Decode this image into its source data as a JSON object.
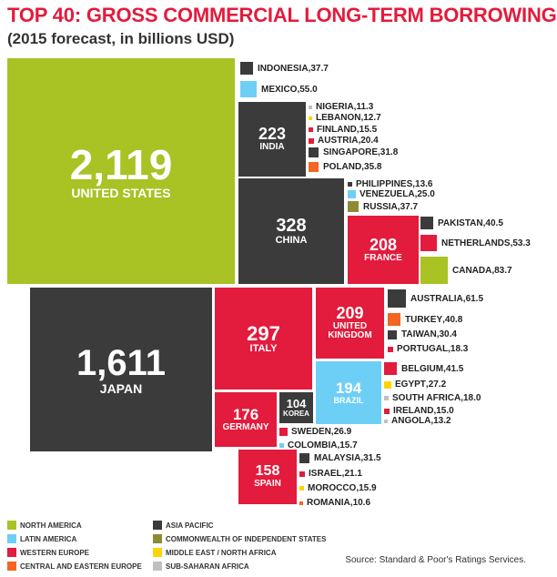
{
  "title": "TOP 40: GROSS COMMERCIAL LONG-TERM BORROWING",
  "subtitle": "(2015 forecast, in billions USD)",
  "source": "Source: Standard & Poor's Ratings Services.",
  "colors": {
    "north_america": "#a9c224",
    "latin_america": "#6ecff6",
    "western_europe": "#e31b3c",
    "central_eastern_europe": "#f26522",
    "asia_pacific": "#3b3b3b",
    "cis": "#8d8b35",
    "mena": "#ffd400",
    "ssa": "#c0c0c0"
  },
  "legend": [
    {
      "region": "north_america",
      "label": "NORTH AMERICA"
    },
    {
      "region": "latin_america",
      "label": "LATIN AMERICA"
    },
    {
      "region": "western_europe",
      "label": "WESTERN EUROPE"
    },
    {
      "region": "central_eastern_europe",
      "label": "CENTRAL AND EASTERN EUROPE"
    },
    {
      "region": "asia_pacific",
      "label": "ASIA PACIFIC"
    },
    {
      "region": "cis",
      "label": "COMMONWEALTH OF INDEPENDENT STATES"
    },
    {
      "region": "mena",
      "label": "MIDDLE EAST / NORTH AFRICA"
    },
    {
      "region": "ssa",
      "label": "SUB-SAHARAN AFRICA"
    }
  ],
  "chart_data": {
    "type": "treemap",
    "title": "TOP 40: GROSS COMMERCIAL LONG-TERM BORROWING",
    "subtitle": "(2015 forecast, in billions USD)",
    "unit": "billions USD",
    "items": [
      {
        "country": "UNITED STATES",
        "value": "2,119",
        "region": "north_america"
      },
      {
        "country": "JAPAN",
        "value": "1,611",
        "region": "asia_pacific"
      },
      {
        "country": "CHINA",
        "value": "328",
        "region": "asia_pacific"
      },
      {
        "country": "ITALY",
        "value": "297",
        "region": "western_europe"
      },
      {
        "country": "INDIA",
        "value": "223",
        "region": "asia_pacific"
      },
      {
        "country": "UNITED KINGDOM",
        "value": "209",
        "region": "western_europe"
      },
      {
        "country": "FRANCE",
        "value": "208",
        "region": "western_europe"
      },
      {
        "country": "BRAZIL",
        "value": "194",
        "region": "latin_america"
      },
      {
        "country": "GERMANY",
        "value": "176",
        "region": "western_europe"
      },
      {
        "country": "SPAIN",
        "value": "158",
        "region": "western_europe"
      },
      {
        "country": "KOREA",
        "value": "104",
        "region": "asia_pacific"
      },
      {
        "country": "CANADA",
        "value": "83.7",
        "region": "north_america"
      },
      {
        "country": "AUSTRALIA",
        "value": "61.5",
        "region": "asia_pacific"
      },
      {
        "country": "MEXICO",
        "value": "55.0",
        "region": "latin_america"
      },
      {
        "country": "NETHERLANDS",
        "value": "53.3",
        "region": "western_europe"
      },
      {
        "country": "BELGIUM",
        "value": "41.5",
        "region": "western_europe"
      },
      {
        "country": "TURKEY",
        "value": "40.8",
        "region": "central_eastern_europe"
      },
      {
        "country": "PAKISTAN",
        "value": "40.5",
        "region": "asia_pacific"
      },
      {
        "country": "INDONESIA",
        "value": "37.7",
        "region": "asia_pacific"
      },
      {
        "country": "RUSSIA",
        "value": "37.7",
        "region": "cis"
      },
      {
        "country": "POLAND",
        "value": "35.8",
        "region": "central_eastern_europe"
      },
      {
        "country": "SINGAPORE",
        "value": "31.8",
        "region": "asia_pacific"
      },
      {
        "country": "MALAYSIA",
        "value": "31.5",
        "region": "asia_pacific"
      },
      {
        "country": "TAIWAN",
        "value": "30.4",
        "region": "asia_pacific"
      },
      {
        "country": "EGYPT",
        "value": "27.2",
        "region": "mena"
      },
      {
        "country": "SWEDEN",
        "value": "26.9",
        "region": "western_europe"
      },
      {
        "country": "VENEZUELA",
        "value": "25.0",
        "region": "latin_america"
      },
      {
        "country": "ISRAEL",
        "value": "21.1",
        "region": "western_europe"
      },
      {
        "country": "AUSTRIA",
        "value": "20.4",
        "region": "western_europe"
      },
      {
        "country": "PORTUGAL",
        "value": "18.3",
        "region": "western_europe"
      },
      {
        "country": "SOUTH AFRICA",
        "value": "18.0",
        "region": "ssa"
      },
      {
        "country": "MOROCCO",
        "value": "15.9",
        "region": "mena"
      },
      {
        "country": "COLOMBIA",
        "value": "15.7",
        "region": "latin_america"
      },
      {
        "country": "FINLAND",
        "value": "15.5",
        "region": "western_europe"
      },
      {
        "country": "IRELAND",
        "value": "15.0",
        "region": "western_europe"
      },
      {
        "country": "PHILIPPINES",
        "value": "13.6",
        "region": "asia_pacific"
      },
      {
        "country": "ANGOLA",
        "value": "13.2",
        "region": "ssa"
      },
      {
        "country": "LEBANON",
        "value": "12.7",
        "region": "mena"
      },
      {
        "country": "NIGERIA",
        "value": "11.3",
        "region": "ssa"
      },
      {
        "country": "ROMANIA",
        "value": "10.6",
        "region": "central_eastern_europe"
      }
    ]
  }
}
